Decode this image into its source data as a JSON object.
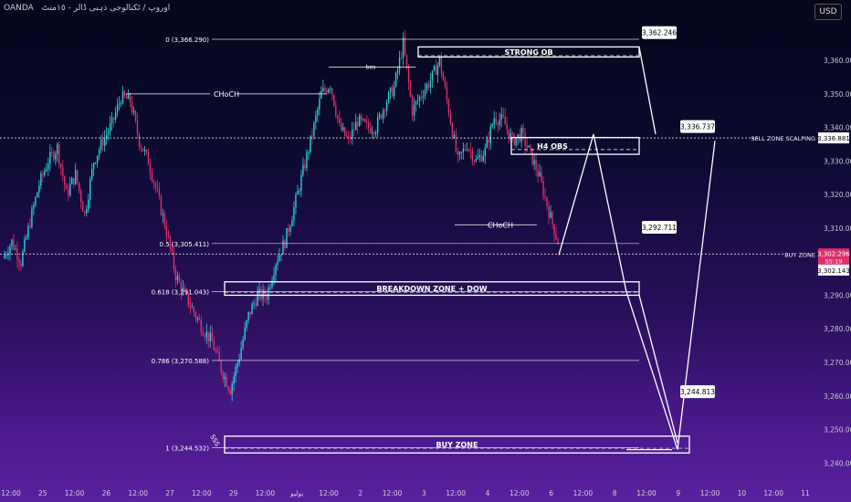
{
  "header": {
    "symbol": "OANDA",
    "descriptor": "اوروپ / ٹکنالوجی ذہبی ڈالر - ١٥منٹ",
    "currency": "USD"
  },
  "chart_data": {
    "type": "candlestick",
    "ylim": [
      3236,
      3372
    ],
    "y_ticks": [
      "3,360.000",
      "3,350.000",
      "3,340.000",
      "3,330.000",
      "3,320.000",
      "3,310.000",
      "3,290.000",
      "3,280.000",
      "3,270.000",
      "3,260.000",
      "3,250.000",
      "3,240.000"
    ],
    "y_tick_values": [
      3360,
      3350,
      3340,
      3330,
      3320,
      3310,
      3290,
      3280,
      3270,
      3260,
      3250,
      3240
    ],
    "x_ticks": [
      "12:00",
      "25",
      "12:00",
      "26",
      "12:00",
      "27",
      "12:00",
      "29",
      "12:00",
      "يوليو",
      "12:00",
      "2",
      "12:00",
      "3",
      "12:00",
      "4",
      "12:00",
      "6",
      "12:00",
      "8",
      "12:00",
      "9",
      "12:00",
      "10",
      "12:00",
      "11"
    ],
    "price_path": [
      3301,
      3306,
      3300,
      3312,
      3323,
      3330,
      3334,
      3320,
      3326,
      3314,
      3330,
      3336,
      3341,
      3349,
      3348,
      3336,
      3330,
      3320,
      3309,
      3296,
      3290,
      3285,
      3280,
      3276,
      3268,
      3262,
      3272,
      3284,
      3290,
      3290,
      3300,
      3306,
      3316,
      3327,
      3338,
      3350,
      3353,
      3340,
      3336,
      3342,
      3340,
      3340,
      3347,
      3352,
      3365,
      3345,
      3350,
      3354,
      3360,
      3345,
      3330,
      3335,
      3330,
      3333,
      3343,
      3342,
      3336,
      3338,
      3332,
      3325,
      3315,
      3306
    ],
    "fib_levels": [
      {
        "label": "0 (3,366.290)",
        "value": 3366.29
      },
      {
        "label": "0.5 (3,305.411)",
        "value": 3305.411
      },
      {
        "label": "0.618 (3,291.043)",
        "value": 3291.043
      },
      {
        "label": "0.786 (3,270.588)",
        "value": 3270.588
      },
      {
        "label": "1 (3,244.532)",
        "value": 3244.532
      }
    ],
    "zones": [
      {
        "label": "STRONG OB",
        "top": 3364,
        "bottom": 3361
      },
      {
        "label": "H4 OBS",
        "top": 3337,
        "bottom": 3332
      },
      {
        "label": "BREAKDOWN ZONE + DOW",
        "top": 3294,
        "bottom": 3290
      },
      {
        "label": "BUY ZONE",
        "top": 3248,
        "bottom": 3243
      }
    ],
    "annotations": {
      "choch_1": "CHoCH",
      "bos": "bos",
      "choch_2": "CHoCH",
      "sss": "SSS"
    },
    "projection_labels": [
      "3,362.246",
      "3,336.737",
      "3,292.711",
      "3,244.813"
    ],
    "right_labels": {
      "sell_zone": "SELL ZONE SCALPING",
      "sell_value": "3,336.881",
      "buy_zone": "BUY ZONE",
      "current_price": "3,302.296",
      "countdown": "55:19",
      "buy_value": "3,302.143"
    },
    "colors": {
      "up": "#2ad1d8",
      "down": "#e0306a",
      "zone": "#ffffff",
      "grid": "#6a6a8a"
    }
  }
}
